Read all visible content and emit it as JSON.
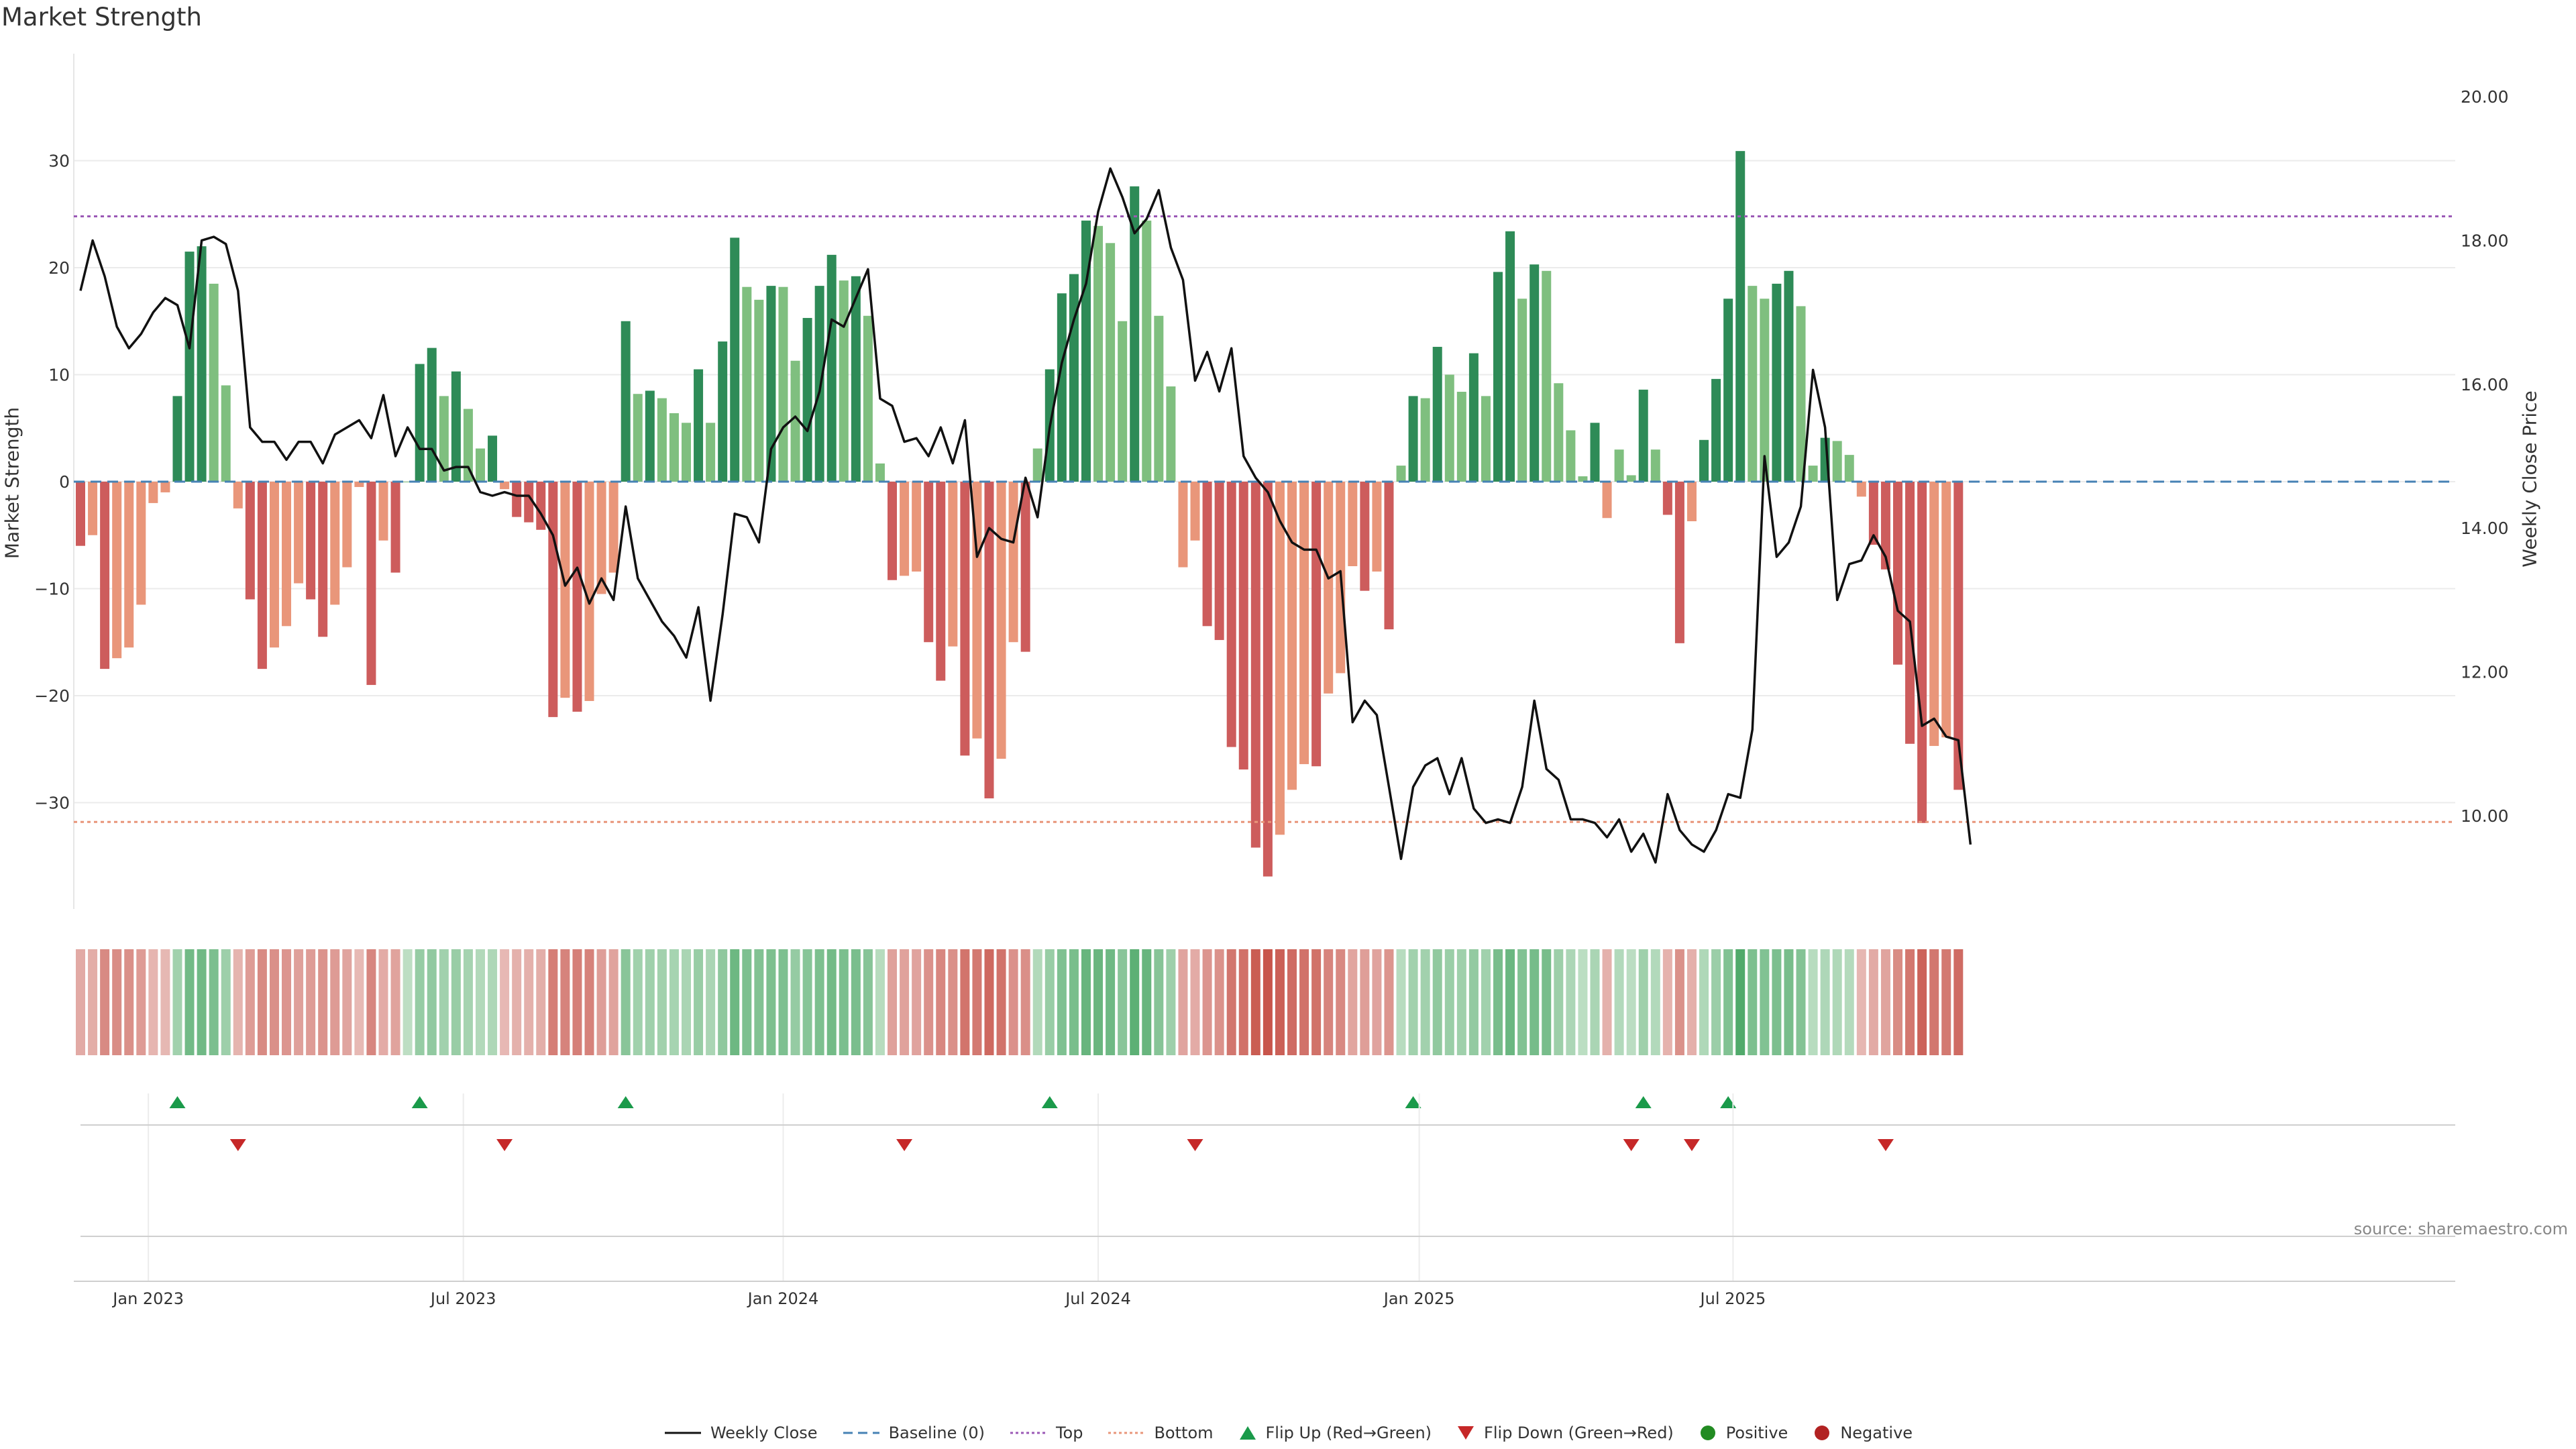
{
  "title": "Market Strength",
  "source": "source: sharemaestro.com",
  "colors": {
    "strong_green": "#2e8b57",
    "light_green": "#7fbf7f",
    "strong_red": "#cd5c5c",
    "light_red": "#e9967a",
    "price_line": "#111111",
    "baseline": "#4682b4",
    "top_line": "#9b59b6",
    "bottom_line": "#e9967a",
    "flip_up": "#1a9a4a",
    "flip_down": "#c62828",
    "positive": "#228b22",
    "negative": "#b22222"
  },
  "chart_data": {
    "type": "bar",
    "ylabel": "Market Strength",
    "y2label": "Weekly Close Price",
    "ylim": [
      -40,
      40
    ],
    "y2lim": [
      9.0,
      20.5
    ],
    "yticks": [
      -30,
      -20,
      -10,
      0,
      10,
      20,
      30
    ],
    "ytick_labels": [
      "−30",
      "−20",
      "−10",
      "0",
      "10",
      "20",
      "30"
    ],
    "y2ticks": [
      10,
      12,
      14,
      16,
      18,
      20
    ],
    "y2tick_labels": [
      "10.00",
      "12.00",
      "14.00",
      "16.00",
      "18.00",
      "20.00"
    ],
    "top_level": 24.8,
    "bottom_level": -31.8,
    "x_start": "2022-11-25",
    "week_days": 7,
    "xticks": [
      {
        "label": "Jan 2023",
        "week": 5.6
      },
      {
        "label": "Jul 2023",
        "week": 31.6
      },
      {
        "label": "Jan 2024",
        "week": 58.0
      },
      {
        "label": "Jul 2024",
        "week": 84.0
      },
      {
        "label": "Jan 2025",
        "week": 110.5
      },
      {
        "label": "Jul 2025",
        "week": 136.4
      }
    ],
    "strength": [
      -6,
      -5,
      -17.5,
      -16.5,
      -15.5,
      -11.5,
      -2,
      -1,
      8,
      21.5,
      22,
      18.5,
      9,
      -2.5,
      -11,
      -17.5,
      -15.5,
      -13.5,
      -9.5,
      -11,
      -14.5,
      -11.5,
      -8,
      -0.5,
      -19,
      -5.5,
      -8.5,
      0,
      11,
      12.5,
      8,
      10.3,
      6.8,
      3.1,
      4.3,
      -0.7,
      -3.3,
      -3.8,
      -4.5,
      -22,
      -20.2,
      -21.5,
      -20.5,
      -10.5,
      -8.5,
      15,
      8.2,
      8.5,
      7.8,
      6.4,
      5.5,
      10.5,
      5.5,
      13.1,
      22.8,
      18.2,
      17,
      18.3,
      18.2,
      11.3,
      15.3,
      18.3,
      21.2,
      18.8,
      19.2,
      15.5,
      1.7,
      -9.2,
      -8.8,
      -8.4,
      -15,
      -18.6,
      -15.4,
      -25.6,
      -24,
      -29.6,
      -25.9,
      -15,
      -15.9,
      3.1,
      10.5,
      17.6,
      19.4,
      24.4,
      23.9,
      22.3,
      15,
      27.6,
      24.4,
      15.5,
      8.9,
      -8,
      -5.5,
      -13.5,
      -14.8,
      -24.8,
      -26.9,
      -34.2,
      -36.9,
      -33,
      -28.8,
      -26.4,
      -26.6,
      -19.8,
      -17.9,
      -7.9,
      -10.2,
      -8.4,
      -13.8,
      1.5,
      8,
      7.8,
      12.6,
      10,
      8.4,
      12,
      8,
      19.6,
      23.4,
      17.1,
      20.3,
      19.7,
      9.2,
      4.8,
      0.5,
      5.5,
      -3.4,
      3,
      0.6,
      8.6,
      3,
      -3.1,
      -15.1,
      -3.7,
      3.9,
      9.6,
      17.1,
      30.9,
      18.3,
      17.1,
      18.5,
      19.7,
      16.4,
      1.5,
      4.1,
      3.8,
      2.5,
      -1.4,
      -5.9,
      -8.2,
      -17.1,
      -24.5,
      -31.9,
      -24.7,
      -23.9,
      -28.8
    ],
    "price": [
      17.3,
      18.0,
      17.5,
      16.8,
      16.5,
      16.7,
      17.0,
      17.2,
      17.1,
      16.5,
      18.0,
      18.05,
      17.95,
      17.3,
      15.4,
      15.2,
      15.2,
      14.95,
      15.2,
      15.2,
      14.9,
      15.3,
      15.4,
      15.5,
      15.25,
      15.85,
      15.0,
      15.4,
      15.1,
      15.1,
      14.8,
      14.85,
      14.85,
      14.5,
      14.45,
      14.5,
      14.45,
      14.45,
      14.2,
      13.9,
      13.2,
      13.45,
      12.95,
      13.3,
      13.0,
      14.3,
      13.3,
      13.0,
      12.7,
      12.5,
      12.2,
      12.9,
      11.6,
      12.8,
      14.2,
      14.15,
      13.8,
      15.1,
      15.4,
      15.55,
      15.35,
      15.9,
      16.9,
      16.8,
      17.2,
      17.6,
      15.8,
      15.7,
      15.2,
      15.25,
      15.0,
      15.4,
      14.9,
      15.5,
      13.6,
      14.0,
      13.85,
      13.8,
      14.7,
      14.15,
      15.4,
      16.3,
      16.9,
      17.4,
      18.4,
      19.0,
      18.6,
      18.1,
      18.3,
      18.7,
      17.9,
      17.45,
      16.05,
      16.45,
      15.9,
      16.5,
      15.0,
      14.7,
      14.5,
      14.1,
      13.8,
      13.7,
      13.7,
      13.3,
      13.4,
      11.3,
      11.6,
      11.4,
      10.4,
      9.4,
      10.4,
      10.7,
      10.8,
      10.3,
      10.8,
      10.1,
      9.9,
      9.95,
      9.9,
      10.4,
      11.6,
      10.65,
      10.5,
      9.95,
      9.95,
      9.9,
      9.7,
      9.95,
      9.5,
      9.75,
      9.35,
      10.3,
      9.8,
      9.6,
      9.5,
      9.8,
      10.3,
      10.25,
      11.2,
      15.0,
      13.6,
      13.8,
      14.3,
      16.2,
      15.4,
      13.0,
      13.5,
      13.55,
      13.9,
      13.6,
      12.85,
      12.7,
      11.25,
      11.35,
      11.1,
      11.05,
      9.6
    ],
    "flip_up_weeks": [
      8,
      28,
      45,
      80,
      110,
      129,
      136
    ],
    "flip_down_weeks": [
      13,
      35,
      68,
      92,
      128,
      133,
      149
    ]
  },
  "legend": [
    {
      "key": "weekly-close",
      "label": "Weekly Close"
    },
    {
      "key": "baseline",
      "label": "Baseline (0)"
    },
    {
      "key": "top",
      "label": "Top"
    },
    {
      "key": "bottom",
      "label": "Bottom"
    },
    {
      "key": "flip-up",
      "label": "Flip Up (Red→Green)"
    },
    {
      "key": "flip-down",
      "label": "Flip Down (Green→Red)"
    },
    {
      "key": "positive",
      "label": "Positive"
    },
    {
      "key": "negative",
      "label": "Negative"
    }
  ]
}
